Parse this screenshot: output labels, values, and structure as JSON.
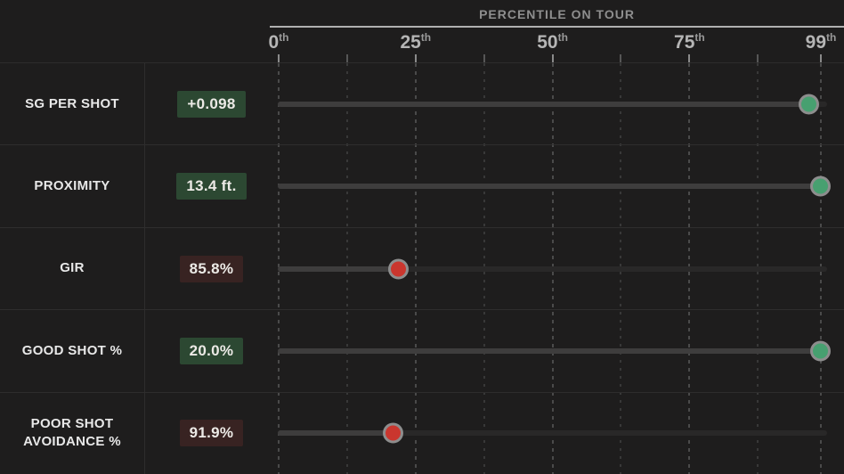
{
  "colors": {
    "background": "#1e1d1d",
    "good_badge": "#2c4832",
    "bad_badge": "#382322",
    "good_dot": "#47a070",
    "bad_dot": "#ca362e",
    "dot_ring": "#8d8d8d",
    "track_fill": "#3e3d3d",
    "track_rest": "#292828",
    "grid_major": "#4a4a4a",
    "grid_minor": "#383838"
  },
  "chart_data": {
    "type": "scatter",
    "subtype": "percentile-dot-sliders",
    "title": "PERCENTILE ON TOUR",
    "xlabel": "Percentile on tour",
    "axis": {
      "min": 0,
      "max": 99,
      "major_ticks": [
        {
          "label": "0",
          "suffix": "th",
          "value": 0
        },
        {
          "label": "25",
          "suffix": "th",
          "value": 25
        },
        {
          "label": "50",
          "suffix": "th",
          "value": 50
        },
        {
          "label": "75",
          "suffix": "th",
          "value": 75
        },
        {
          "label": "99",
          "suffix": "th",
          "value": 99
        }
      ],
      "minor_tick_values": [
        12.5,
        37.5,
        62.5,
        87.5
      ],
      "grid": "dashed-vertical"
    },
    "rows": [
      {
        "label": "SG PER SHOT",
        "value": "+0.098",
        "percentile": 97,
        "status": "good"
      },
      {
        "label": "PROXIMITY",
        "value": "13.4 ft.",
        "percentile": 99,
        "status": "good"
      },
      {
        "label": "GIR",
        "value": "85.8%",
        "percentile": 22,
        "status": "bad"
      },
      {
        "label": "GOOD SHOT %",
        "value": "20.0%",
        "percentile": 99,
        "status": "good"
      },
      {
        "label": "POOR SHOT AVOIDANCE %",
        "value": "91.9%",
        "percentile": 21,
        "status": "bad"
      }
    ]
  }
}
